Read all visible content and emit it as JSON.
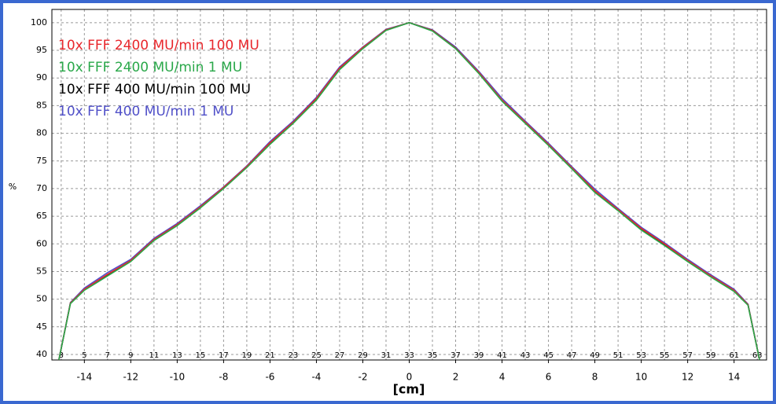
{
  "chart_data": {
    "type": "line",
    "xlabel": "[cm]",
    "ylabel": "%",
    "x": [
      -15.1,
      -14.6,
      -14,
      -13,
      -12,
      -11,
      -10,
      -9,
      -8,
      -7,
      -6,
      -5,
      -4,
      -3,
      -2,
      -1,
      0,
      1,
      2,
      3,
      4,
      5,
      6,
      7,
      8,
      9,
      10,
      11,
      12,
      13,
      14,
      14.6,
      15.1
    ],
    "series": [
      {
        "name": "10x FFF 2400 MU/min 100 MU",
        "color": "#e8262b",
        "values": [
          39,
          49.3,
          51.8,
          54.5,
          57,
          60.8,
          63.5,
          66.7,
          70.2,
          74,
          78.3,
          82,
          86.3,
          91.8,
          95.5,
          98.7,
          100,
          98.6,
          95.4,
          91,
          86,
          82,
          78,
          73.8,
          69.6,
          66.2,
          62.8,
          60,
          57,
          54.2,
          51.6,
          49,
          39
        ]
      },
      {
        "name": "10x FFF 2400 MU/min 1 MU",
        "color": "#2aa84a",
        "values": [
          39,
          49.2,
          51.6,
          54.2,
          56.8,
          60.6,
          63.3,
          66.5,
          70,
          73.8,
          78,
          81.8,
          86,
          91.5,
          95.3,
          98.6,
          100,
          98.5,
          95.3,
          90.8,
          85.8,
          81.8,
          77.8,
          73.6,
          69.3,
          66,
          62.5,
          59.7,
          56.8,
          54,
          51.4,
          48.9,
          39
        ]
      },
      {
        "name": "10x FFF 400 MU/min 100 MU",
        "color": "#000000",
        "values": [
          39,
          49.3,
          51.7,
          54.4,
          56.9,
          60.7,
          63.4,
          66.6,
          70.1,
          73.9,
          78.2,
          81.9,
          86.2,
          91.7,
          95.4,
          98.7,
          100,
          98.6,
          95.4,
          90.9,
          85.9,
          81.9,
          77.9,
          73.7,
          69.5,
          66.1,
          62.7,
          59.9,
          56.9,
          54.1,
          51.5,
          49,
          39
        ]
      },
      {
        "name": "10x FFF 400 MU/min 1 MU",
        "color": "#5050c8",
        "values": [
          39,
          49.4,
          52,
          54.8,
          57.2,
          61,
          63.7,
          66.9,
          70.3,
          74.1,
          78.5,
          82.2,
          86.5,
          92,
          95.6,
          98.8,
          100,
          98.7,
          95.6,
          91.2,
          86.3,
          82.2,
          78.2,
          74,
          69.9,
          66.4,
          63,
          60.2,
          57.2,
          54.4,
          51.8,
          49.1,
          39
        ]
      }
    ],
    "xlim": [
      -15.4,
      15.4
    ],
    "xticks": [
      -14,
      -12,
      -10,
      -8,
      -6,
      -4,
      -2,
      0,
      2,
      4,
      6,
      8,
      10,
      12,
      14
    ],
    "x2lim": [
      2.2,
      63.8
    ],
    "x2ticks": [
      3,
      5,
      7,
      9,
      11,
      13,
      15,
      17,
      19,
      21,
      23,
      25,
      27,
      29,
      31,
      33,
      35,
      37,
      39,
      41,
      43,
      45,
      47,
      49,
      51,
      53,
      55,
      57,
      59,
      61,
      63
    ],
    "ylim": [
      39,
      102.4
    ],
    "yticks": [
      40,
      45,
      50,
      55,
      60,
      65,
      70,
      75,
      80,
      85,
      90,
      95,
      100
    ],
    "grid": true
  }
}
